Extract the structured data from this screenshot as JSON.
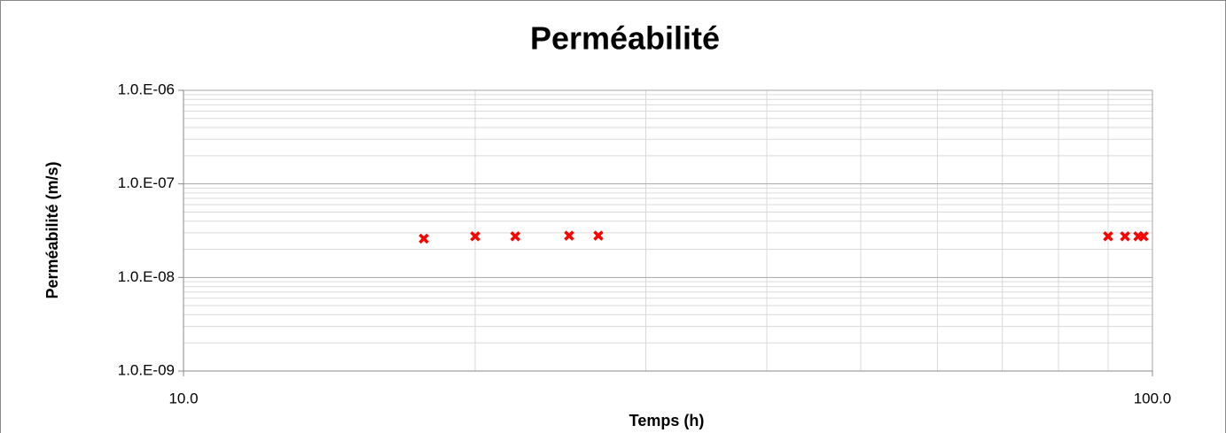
{
  "chart_data": {
    "type": "scatter",
    "title": "Perméabilité",
    "x_label": "Temps (h)",
    "y_label": "Perméabilité (m/s)",
    "x": [
      17.7,
      20.0,
      22.0,
      25.0,
      26.8,
      90.0,
      93.7,
      96.7,
      97.9
    ],
    "values": [
      2.6e-08,
      2.75e-08,
      2.75e-08,
      2.8e-08,
      2.8e-08,
      2.75e-08,
      2.75e-08,
      2.75e-08,
      2.75e-08
    ],
    "color": "#ff0000",
    "marker": "x",
    "xscale": "log",
    "yscale": "log",
    "xlim": [
      10,
      100
    ],
    "ylim": [
      1e-09,
      1e-06
    ],
    "xticks": [
      {
        "value": 10,
        "label": "10.0"
      },
      {
        "value": 100,
        "label": "100.0"
      }
    ],
    "yticks": [
      {
        "value": 1e-09,
        "label": "1.0.E-09"
      },
      {
        "value": 1e-08,
        "label": "1.0.E-08"
      },
      {
        "value": 1e-07,
        "label": "1.0.E-07"
      },
      {
        "value": 1e-06,
        "label": "1.0.E-06"
      }
    ],
    "grid": true,
    "minor_grid": true
  }
}
